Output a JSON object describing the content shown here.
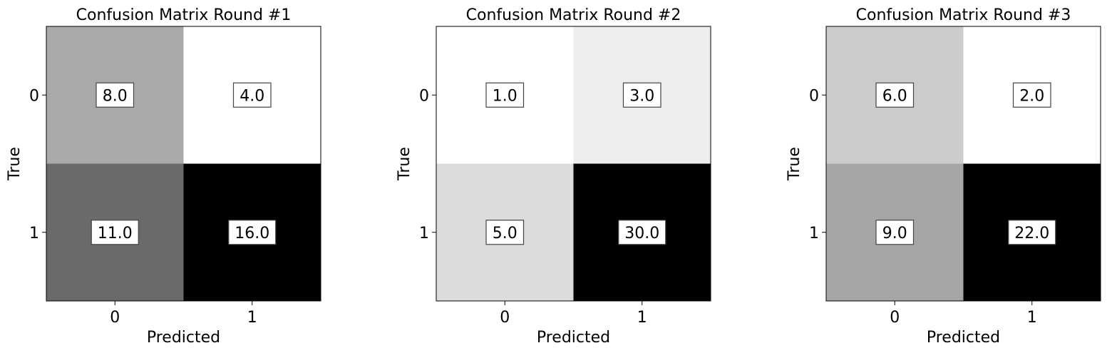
{
  "chart_data": [
    {
      "type": "heatmap",
      "title": "Confusion Matrix Round #1",
      "xlabel": "Predicted",
      "ylabel": "True",
      "x_categories": [
        "0",
        "1"
      ],
      "y_categories": [
        "0",
        "1"
      ],
      "values": [
        [
          8.0,
          4.0
        ],
        [
          11.0,
          16.0
        ]
      ],
      "value_labels": [
        [
          "8.0",
          "4.0"
        ],
        [
          "11.0",
          "16.0"
        ]
      ],
      "colormap": "greys",
      "grid": false
    },
    {
      "type": "heatmap",
      "title": "Confusion Matrix Round #2",
      "xlabel": "Predicted",
      "ylabel": "True",
      "x_categories": [
        "0",
        "1"
      ],
      "y_categories": [
        "0",
        "1"
      ],
      "values": [
        [
          1.0,
          3.0
        ],
        [
          5.0,
          30.0
        ]
      ],
      "value_labels": [
        [
          "1.0",
          "3.0"
        ],
        [
          "5.0",
          "30.0"
        ]
      ],
      "colormap": "greys",
      "grid": false
    },
    {
      "type": "heatmap",
      "title": "Confusion Matrix Round #3",
      "xlabel": "Predicted",
      "ylabel": "True",
      "x_categories": [
        "0",
        "1"
      ],
      "y_categories": [
        "0",
        "1"
      ],
      "values": [
        [
          6.0,
          2.0
        ],
        [
          9.0,
          22.0
        ]
      ],
      "value_labels": [
        [
          "6.0",
          "2.0"
        ],
        [
          "9.0",
          "22.0"
        ]
      ],
      "colormap": "greys",
      "grid": false
    }
  ]
}
